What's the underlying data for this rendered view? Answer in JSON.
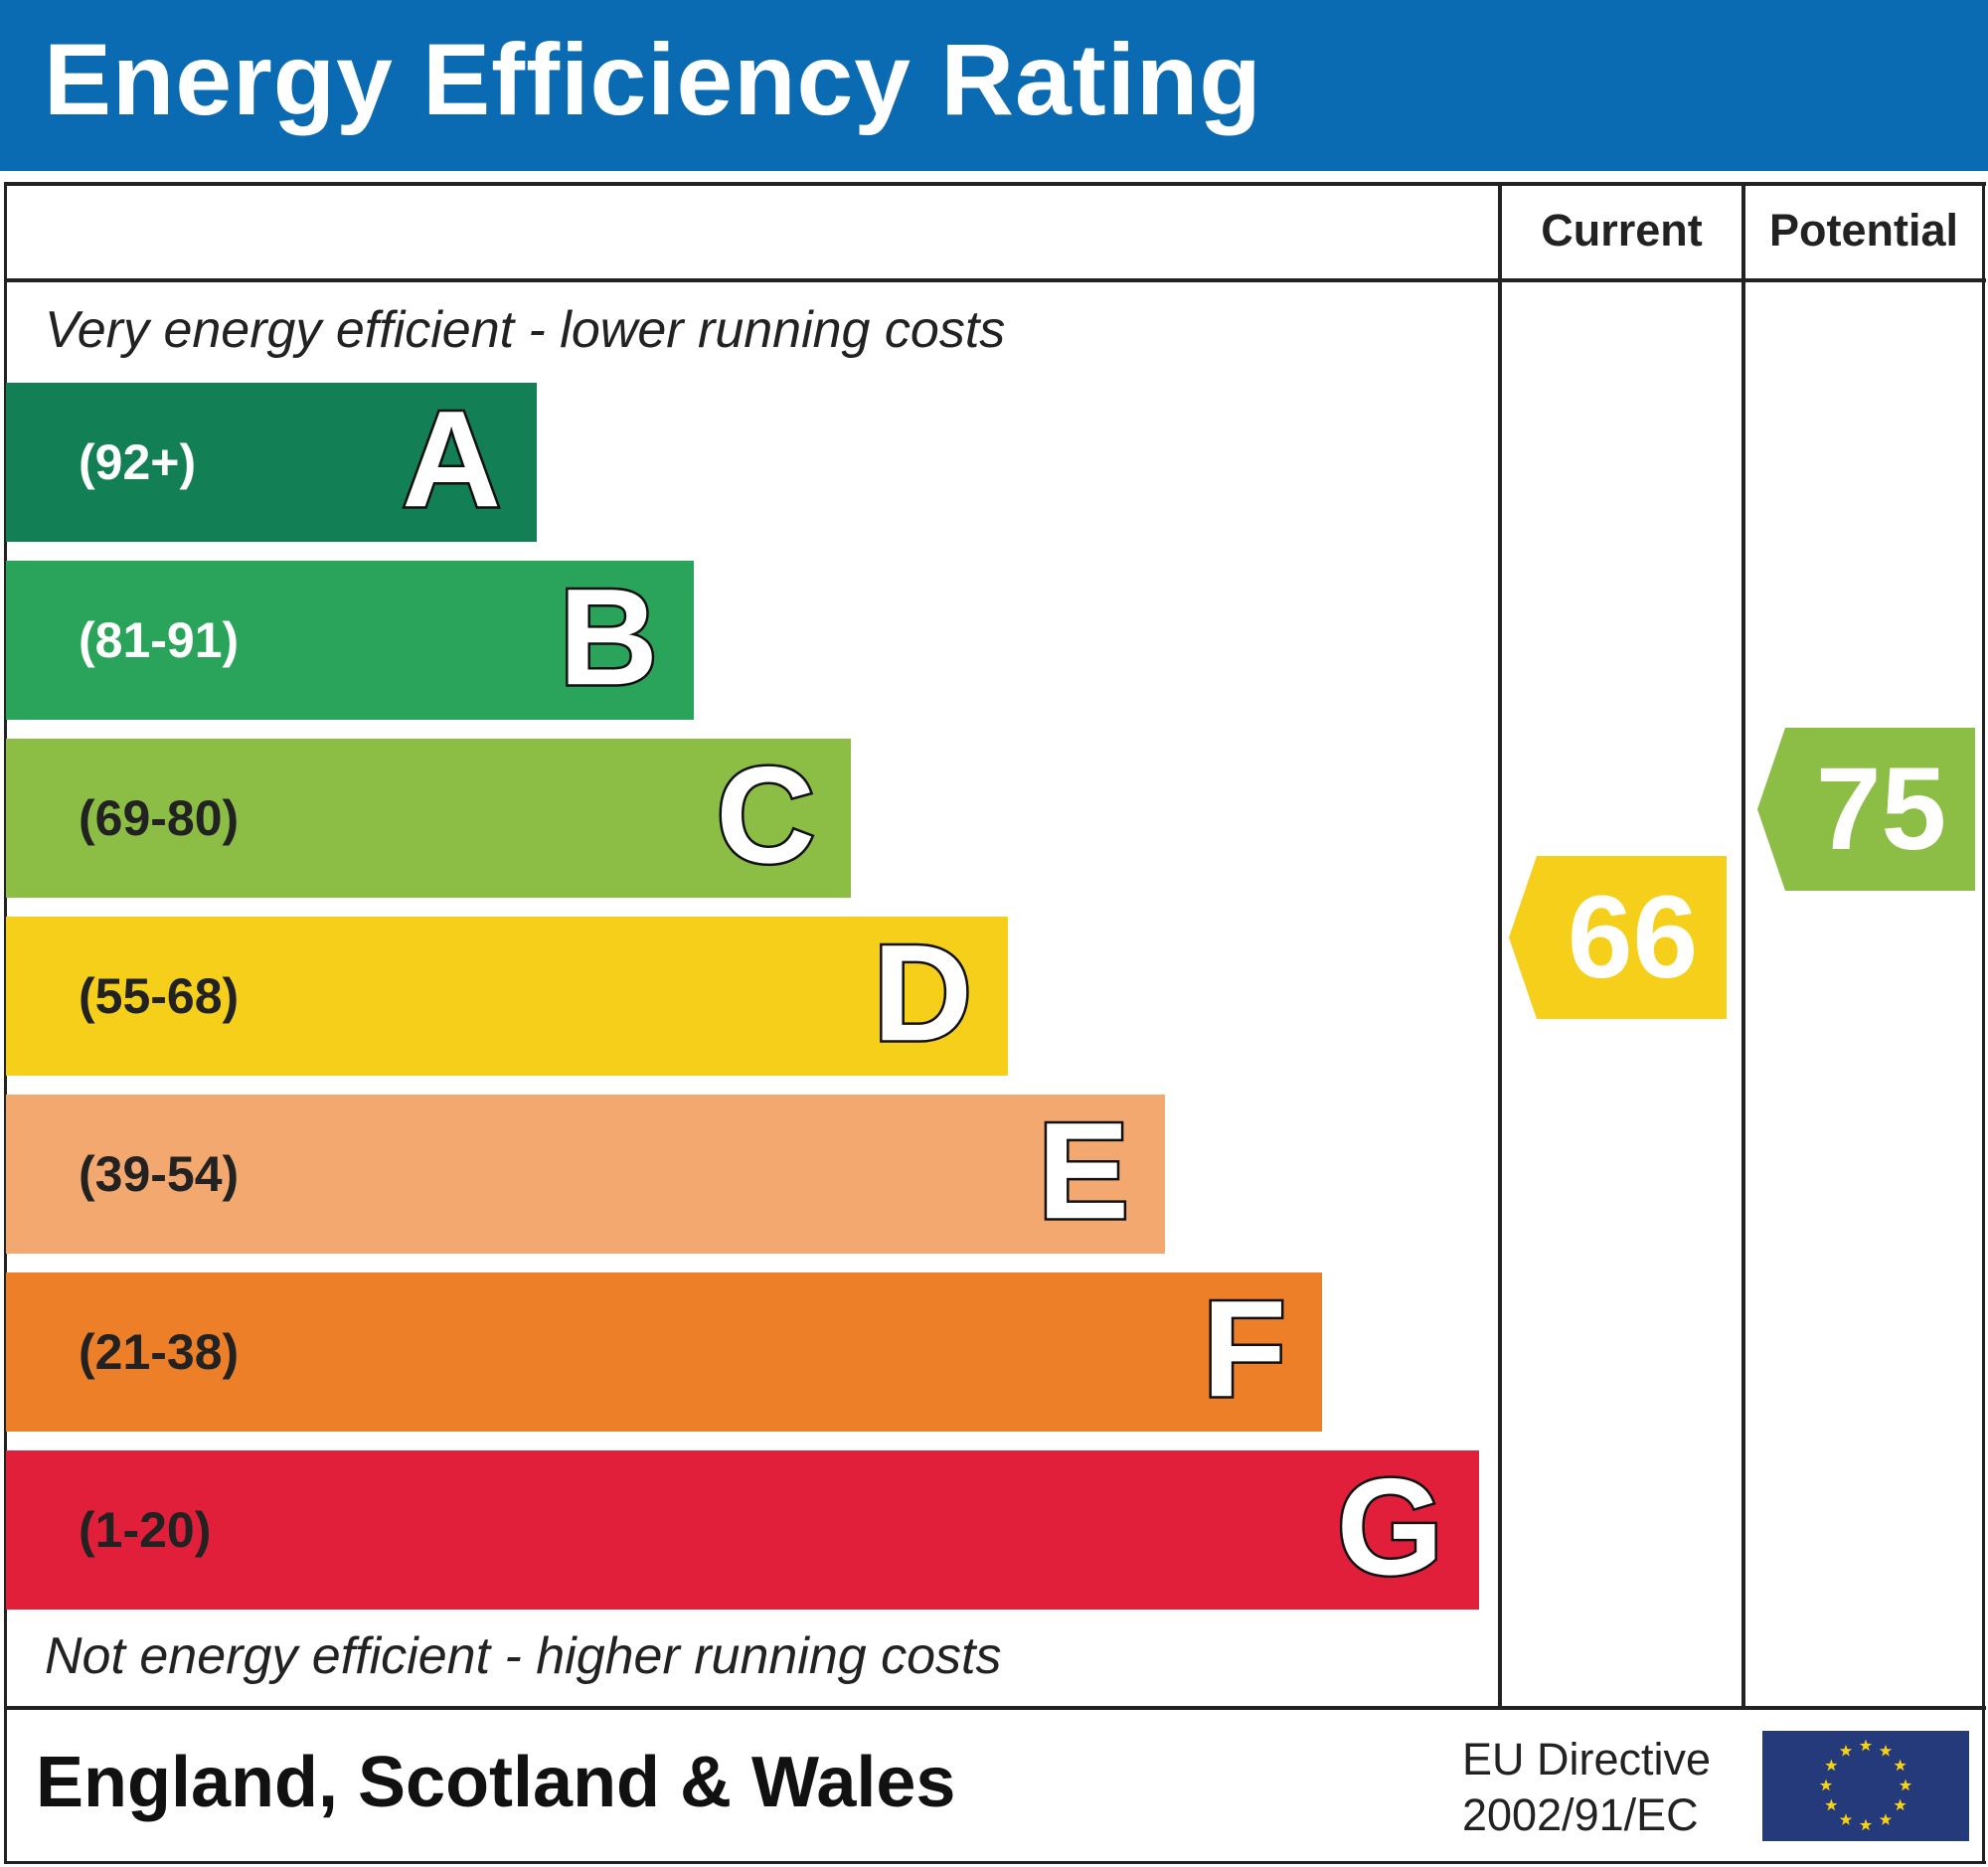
{
  "title": "Energy Efficiency Rating",
  "columns": {
    "current": "Current",
    "potential": "Potential"
  },
  "top_note": "Very energy efficient - lower running costs",
  "bottom_note": "Not energy efficient - higher running costs",
  "footer": {
    "region": "England, Scotland & Wales",
    "directive_line1": "EU Directive",
    "directive_line2": "2002/91/EC",
    "flag_icon": "eu-flag-icon"
  },
  "colors": {
    "header": "#0a6bb3"
  },
  "chart_data": {
    "type": "bar",
    "title": "Energy Efficiency Rating",
    "categories": [
      "A",
      "B",
      "C",
      "D",
      "E",
      "F",
      "G"
    ],
    "bands": [
      {
        "letter": "A",
        "range": "(92+)",
        "color": "#127f54",
        "text_color": "#ffffff"
      },
      {
        "letter": "B",
        "range": "(81-91)",
        "color": "#29a45a",
        "text_color": "#ffffff"
      },
      {
        "letter": "C",
        "range": "(69-80)",
        "color": "#8cbe45",
        "text_color": "#222222"
      },
      {
        "letter": "D",
        "range": "(55-68)",
        "color": "#f5cf1a",
        "text_color": "#222222"
      },
      {
        "letter": "E",
        "range": "(39-54)",
        "color": "#f2a86e",
        "text_color": "#222222"
      },
      {
        "letter": "F",
        "range": "(21-38)",
        "color": "#ec7f28",
        "text_color": "#222222"
      },
      {
        "letter": "G",
        "range": "(1-20)",
        "color": "#e21f3b",
        "text_color": "#222222"
      }
    ],
    "current": {
      "value": 66,
      "band": "D",
      "color": "#f5cf1a"
    },
    "potential": {
      "value": 75,
      "band": "C",
      "color": "#8cbe45"
    }
  }
}
